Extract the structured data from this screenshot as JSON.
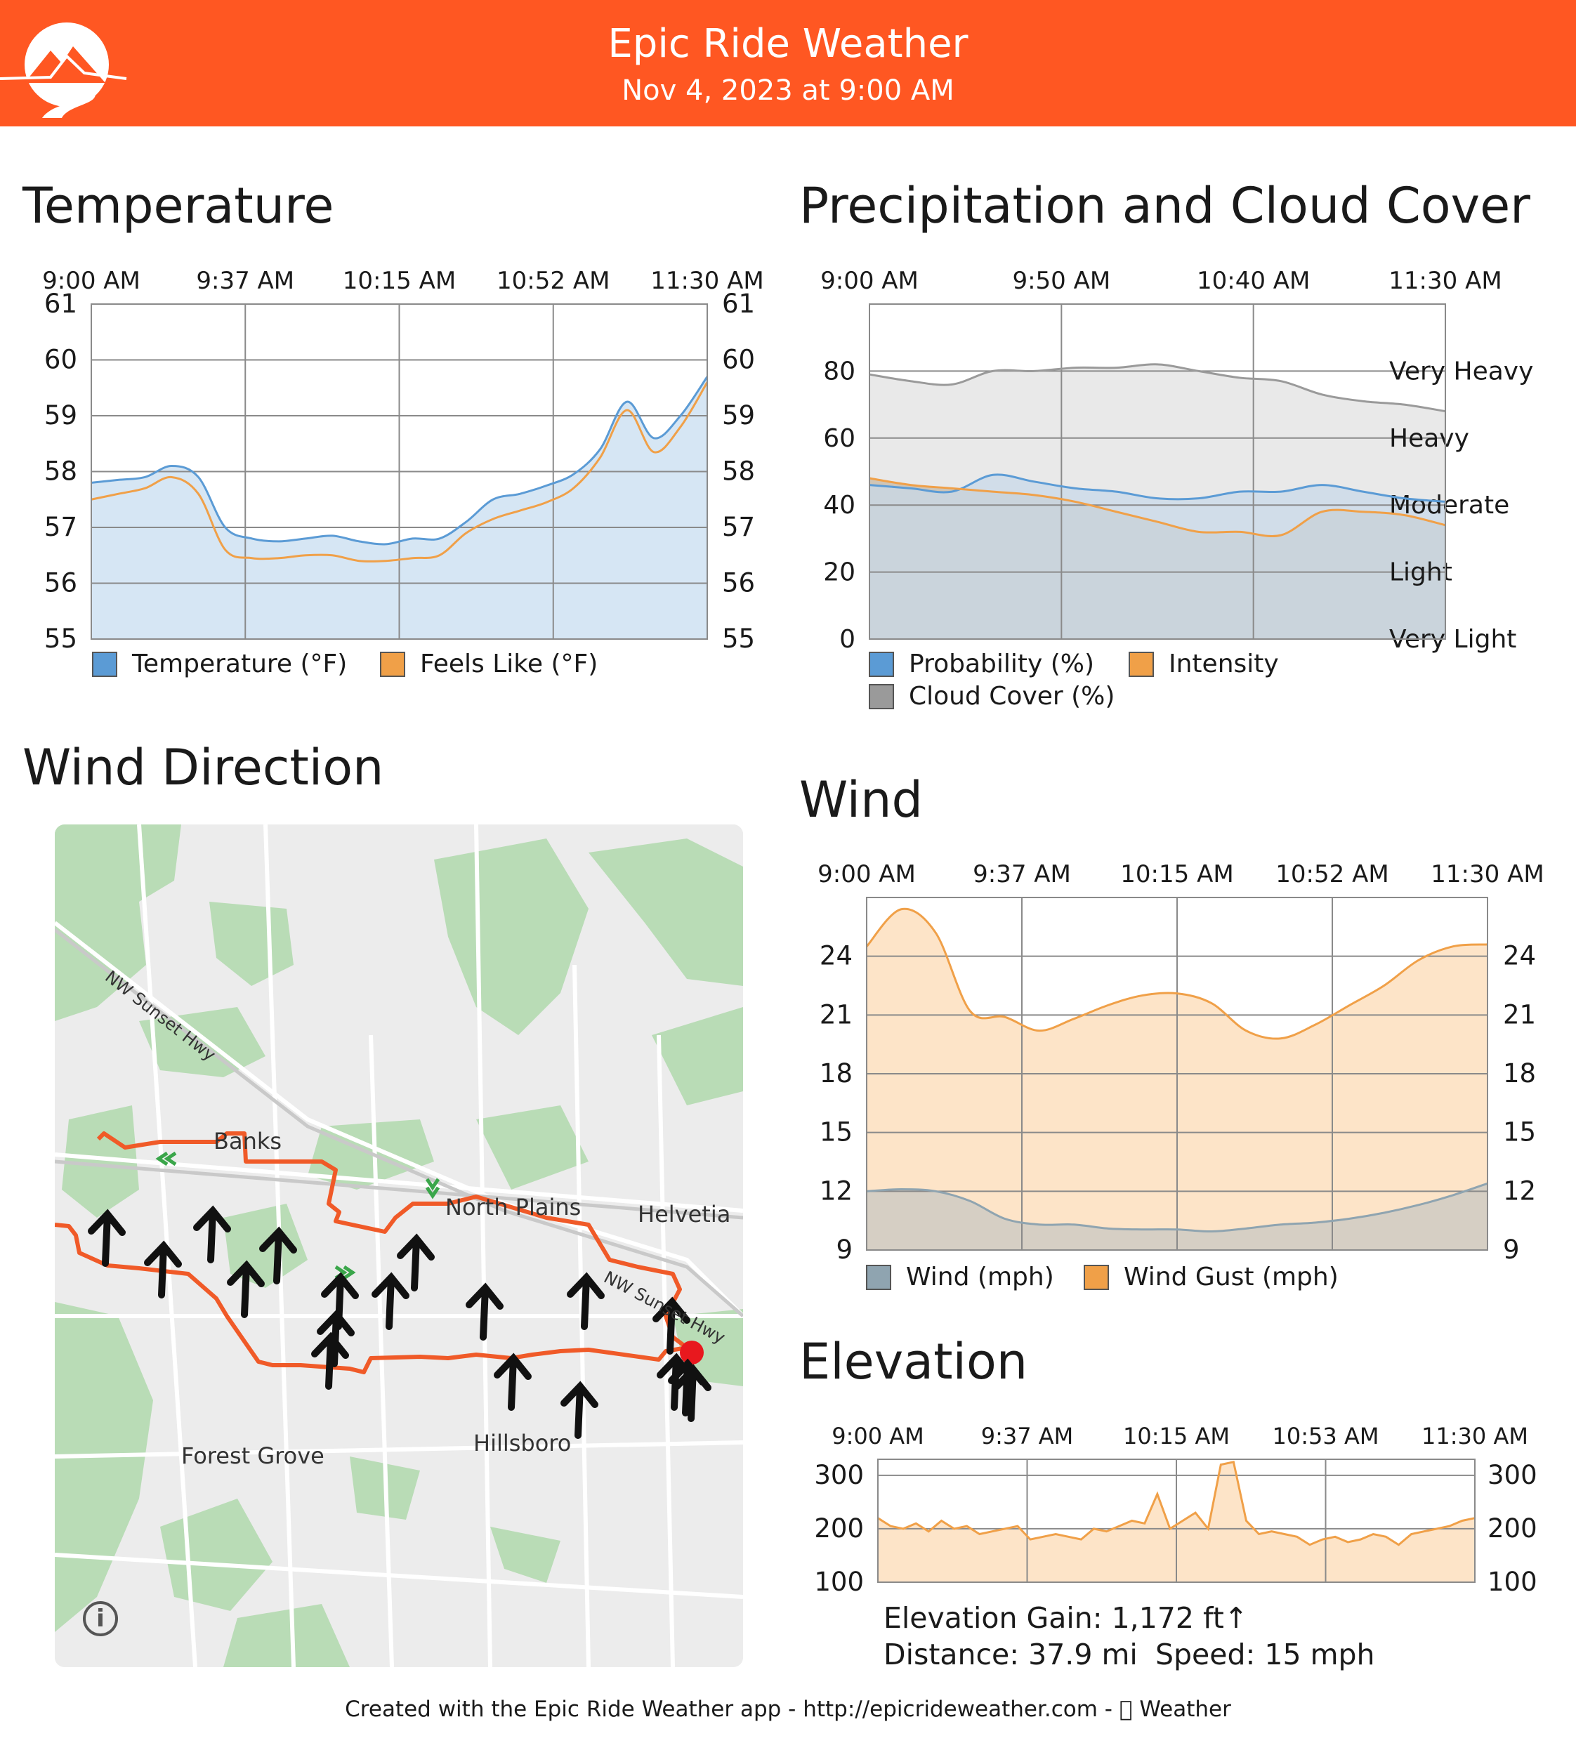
{
  "header": {
    "title": "Epic Ride Weather",
    "subtitle": "Nov 4, 2023 at 9:00 AM",
    "brand_color": "#ff5722",
    "logo_icon": "mountain-road-logo-icon"
  },
  "sections": {
    "temperature": "Temperature",
    "precipitation": "Precipitation and Cloud Cover",
    "wind_direction": "Wind Direction",
    "wind": "Wind",
    "elevation": "Elevation"
  },
  "map": {
    "places": [
      "Banks",
      "North Plains",
      "Helvetia",
      "Forest Grove",
      "Hillsboro"
    ],
    "roads": [
      "NW Sunset Hwy",
      "NW Sunset Hwy"
    ],
    "info_icon": "info-icon",
    "arrow_color": "#111111",
    "route_color": "#f05a28",
    "marker_color": "#e8181e"
  },
  "elevation_stats": {
    "gain": "Elevation Gain: 1,172 ft↑",
    "distance": "Distance: 37.9 mi",
    "speed": "Speed: 15 mph"
  },
  "footer": {
    "text": "Created with the Epic Ride Weather app - http://epicrideweather.com -  Weather",
    "credit_prefix": "Created with the Epic Ride Weather app - http://epicrideweather.com - ",
    "apple_icon": "apple-icon",
    "credit_suffix": "Weather"
  },
  "chart_data": [
    {
      "id": "temperature",
      "type": "area",
      "x_ticks": [
        "9:00 AM",
        "9:37 AM",
        "10:15 AM",
        "10:52 AM",
        "11:30 AM"
      ],
      "ylim": [
        55,
        61
      ],
      "y_ticks": [
        "55",
        "56",
        "57",
        "58",
        "59",
        "60",
        "61"
      ],
      "right_ticks": [
        "55",
        "56",
        "57",
        "58",
        "59",
        "60",
        "61"
      ],
      "grid": true,
      "series": [
        {
          "name": "Temperature (°F)",
          "color": "#5b9bd5",
          "fill": "#d6e6f4",
          "values": [
            57.8,
            57.85,
            57.9,
            58.1,
            57.9,
            57.0,
            56.8,
            56.75,
            56.8,
            56.85,
            56.75,
            56.7,
            56.8,
            56.8,
            57.1,
            57.5,
            57.6,
            57.75,
            57.95,
            58.4,
            59.25,
            58.6,
            59.0,
            59.7
          ]
        },
        {
          "name": "Feels Like (°F)",
          "color": "#f0a048",
          "fill": "#e0d6c6",
          "values": [
            57.5,
            57.6,
            57.7,
            57.9,
            57.6,
            56.6,
            56.45,
            56.45,
            56.5,
            56.5,
            56.4,
            56.4,
            56.45,
            56.5,
            56.9,
            57.15,
            57.3,
            57.45,
            57.7,
            58.25,
            59.1,
            58.35,
            58.8,
            59.6
          ]
        }
      ]
    },
    {
      "id": "precipitation",
      "type": "area",
      "x_ticks": [
        "9:00 AM",
        "9:50 AM",
        "10:40 AM",
        "11:30 AM"
      ],
      "ylim": [
        0,
        100
      ],
      "y_ticks": [
        "0",
        "20",
        "40",
        "60",
        "80"
      ],
      "right_ticks": [
        "Very Light",
        "Light",
        "Moderate",
        "Heavy",
        "Very Heavy"
      ],
      "grid": true,
      "series": [
        {
          "name": "Probability (%)",
          "color": "#5b9bd5",
          "fill": "#c8d8e8",
          "values": [
            46,
            45,
            44,
            49,
            47,
            45,
            44,
            42,
            42,
            44,
            44,
            46,
            44,
            42,
            41
          ]
        },
        {
          "name": "Intensity",
          "color": "#f0a048",
          "fill": "#cfc5b6",
          "values": [
            48,
            46,
            45,
            44,
            43,
            41,
            38,
            35,
            32,
            32,
            31,
            38,
            38,
            37,
            34
          ]
        },
        {
          "name": "Cloud Cover (%)",
          "color": "#9a9a9a",
          "fill": "#e9e9e9",
          "values": [
            79,
            77,
            76,
            80,
            80,
            81,
            81,
            82,
            80,
            78,
            77,
            73,
            71,
            70,
            68
          ]
        }
      ]
    },
    {
      "id": "wind",
      "type": "area",
      "x_ticks": [
        "9:00 AM",
        "9:37 AM",
        "10:15 AM",
        "10:52 AM",
        "11:30 AM"
      ],
      "ylim": [
        9,
        27
      ],
      "y_ticks": [
        "9",
        "12",
        "15",
        "18",
        "21",
        "24"
      ],
      "right_ticks": [
        "9",
        "12",
        "15",
        "18",
        "21",
        "24"
      ],
      "grid": true,
      "series": [
        {
          "name": "Wind (mph)",
          "color": "#8fa4b0",
          "fill": "#d6cfc4",
          "values": [
            12,
            12.1,
            12,
            11.5,
            10.6,
            10.3,
            10.3,
            10.1,
            10.05,
            10.05,
            9.95,
            10.1,
            10.3,
            10.4,
            10.6,
            10.9,
            11.3,
            11.8,
            12.4
          ]
        },
        {
          "name": "Wind Gust (mph)",
          "color": "#f0a048",
          "fill": "#fde4c8",
          "values": [
            24.5,
            26.4,
            25.2,
            21.2,
            20.9,
            20.2,
            20.8,
            21.5,
            22,
            22.1,
            21.6,
            20.2,
            19.8,
            20.5,
            21.5,
            22.5,
            23.8,
            24.5,
            24.6
          ]
        }
      ]
    },
    {
      "id": "elevation",
      "type": "area",
      "x_ticks": [
        "9:00 AM",
        "9:37 AM",
        "10:15 AM",
        "10:53 AM",
        "11:30 AM"
      ],
      "ylim": [
        100,
        330
      ],
      "y_ticks": [
        "100",
        "200",
        "300"
      ],
      "right_ticks": [
        "100",
        "200",
        "300"
      ],
      "grid": true,
      "series": [
        {
          "name": "Elevation (ft)",
          "color": "#f0a048",
          "fill": "#fde4c8",
          "values": [
            220,
            205,
            200,
            210,
            195,
            215,
            200,
            205,
            190,
            195,
            200,
            205,
            180,
            185,
            190,
            185,
            180,
            200,
            195,
            205,
            215,
            210,
            265,
            200,
            215,
            230,
            200,
            320,
            325,
            215,
            190,
            195,
            190,
            185,
            170,
            180,
            185,
            175,
            180,
            190,
            185,
            170,
            190,
            195,
            200,
            205,
            215,
            220
          ]
        }
      ]
    }
  ]
}
